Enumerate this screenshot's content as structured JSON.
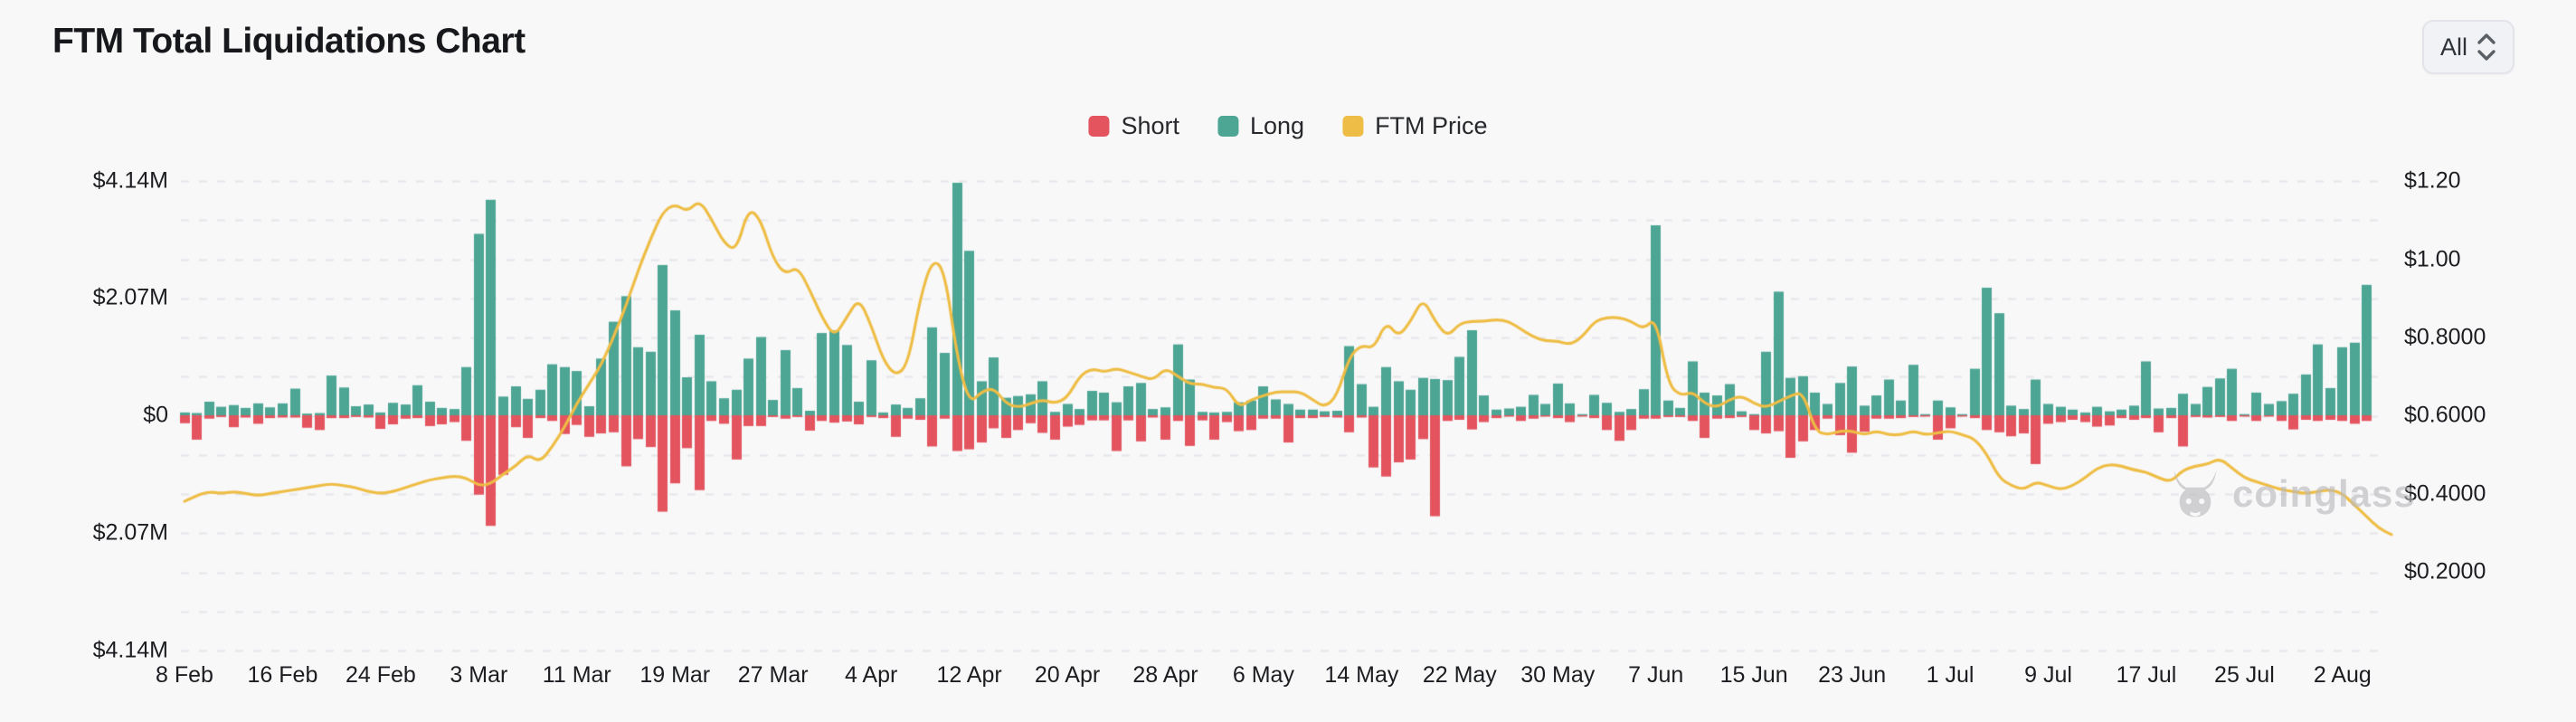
{
  "header": {
    "title": "FTM Total Liquidations Chart",
    "range_selector": {
      "selected": "All"
    }
  },
  "legend": {
    "items": [
      {
        "label": "Short",
        "color": "#e3545f"
      },
      {
        "label": "Long",
        "color": "#4da594"
      },
      {
        "label": "FTM Price",
        "color": "#eebd45"
      }
    ]
  },
  "watermark": {
    "text": "coinglass",
    "icon": "bull-icon"
  },
  "colors": {
    "background": "#f8f8f9",
    "gridline": "#e6e6e9",
    "short_bar": "#e3545f",
    "long_bar": "#4da594",
    "price_line": "#eebd45",
    "axis_text": "#1c1d20"
  },
  "chart_data": {
    "type": "combo",
    "title": "FTM Total Liquidations Chart",
    "grid": "horizontal-dashed",
    "legend_position": "top-center",
    "x_tick_labels": [
      "8 Feb",
      "16 Feb",
      "24 Feb",
      "3 Mar",
      "11 Mar",
      "19 Mar",
      "27 Mar",
      "4 Apr",
      "12 Apr",
      "20 Apr",
      "28 Apr",
      "6 May",
      "14 May",
      "22 May",
      "30 May",
      "7 Jun",
      "15 Jun",
      "23 Jun",
      "1 Jul",
      "9 Jul",
      "17 Jul",
      "25 Jul",
      "2 Aug"
    ],
    "x_tick_interval_days": 8,
    "y_axis_left": {
      "tick_labels": [
        "$4.14M",
        "$2.07M",
        "$0",
        "$2.07M",
        "$4.14M"
      ],
      "range_million_usd": [
        -4.14,
        4.14
      ],
      "note": "bars; negative shown unsigned"
    },
    "y_axis_right": {
      "tick_labels": [
        "$1.20",
        "$1.00",
        "$0.8000",
        "$0.6000",
        "$0.4000",
        "$0.2000"
      ],
      "range_usd": [
        0.0,
        1.2
      ]
    },
    "series": [
      {
        "name": "Long",
        "type": "bar",
        "direction": "up",
        "unit": "million USD",
        "color": "#4da594",
        "values": [
          0.05,
          0.04,
          0.24,
          0.15,
          0.18,
          0.13,
          0.21,
          0.14,
          0.21,
          0.47,
          0.03,
          0.04,
          0.7,
          0.49,
          0.16,
          0.19,
          0.05,
          0.22,
          0.19,
          0.53,
          0.24,
          0.13,
          0.11,
          0.85,
          3.2,
          3.8,
          0.33,
          0.51,
          0.29,
          0.45,
          0.9,
          0.85,
          0.78,
          0.16,
          1.0,
          1.65,
          2.1,
          1.2,
          1.12,
          2.65,
          1.85,
          0.67,
          1.42,
          0.6,
          0.3,
          0.45,
          1.0,
          1.38,
          0.27,
          1.15,
          0.48,
          0.08,
          1.45,
          1.5,
          1.24,
          0.24,
          0.97,
          0.05,
          0.19,
          0.13,
          0.3,
          1.55,
          1.1,
          4.1,
          2.9,
          0.6,
          1.02,
          0.31,
          0.34,
          0.37,
          0.6,
          0.06,
          0.2,
          0.11,
          0.43,
          0.4,
          0.23,
          0.51,
          0.57,
          0.11,
          0.14,
          1.25,
          0.63,
          0.06,
          0.05,
          0.06,
          0.23,
          0.26,
          0.51,
          0.28,
          0.2,
          0.1,
          0.1,
          0.07,
          0.08,
          1.22,
          0.55,
          0.15,
          0.85,
          0.6,
          0.45,
          0.66,
          0.64,
          0.62,
          1.03,
          1.5,
          0.35,
          0.1,
          0.12,
          0.15,
          0.36,
          0.2,
          0.56,
          0.21,
          0.02,
          0.36,
          0.22,
          0.06,
          0.11,
          0.46,
          3.35,
          0.26,
          0.13,
          0.95,
          0.4,
          0.35,
          0.55,
          0.07,
          0.02,
          1.12,
          2.18,
          0.66,
          0.69,
          0.4,
          0.2,
          0.57,
          0.86,
          0.17,
          0.35,
          0.63,
          0.26,
          0.89,
          0.02,
          0.26,
          0.14,
          0.02,
          0.82,
          2.25,
          1.8,
          0.17,
          0.11,
          0.63,
          0.2,
          0.15,
          0.1,
          0.05,
          0.15,
          0.07,
          0.1,
          0.17,
          0.95,
          0.12,
          0.13,
          0.38,
          0.2,
          0.5,
          0.65,
          0.82,
          0.02,
          0.4,
          0.2,
          0.25,
          0.38,
          0.72,
          1.25,
          0.48,
          1.2,
          1.28,
          2.3
        ]
      },
      {
        "name": "Short",
        "type": "bar",
        "direction": "down",
        "unit": "million USD",
        "color": "#e3545f",
        "values": [
          0.14,
          0.43,
          0.06,
          0.03,
          0.21,
          0.04,
          0.15,
          0.05,
          0.04,
          0.04,
          0.22,
          0.26,
          0.05,
          0.05,
          0.03,
          0.04,
          0.24,
          0.16,
          0.06,
          0.05,
          0.19,
          0.16,
          0.12,
          0.45,
          1.4,
          1.95,
          1.05,
          0.21,
          0.4,
          0.05,
          0.1,
          0.33,
          0.17,
          0.38,
          0.32,
          0.3,
          0.9,
          0.42,
          0.56,
          1.7,
          1.2,
          0.58,
          1.32,
          0.1,
          0.15,
          0.78,
          0.19,
          0.19,
          0.03,
          0.06,
          0.03,
          0.27,
          0.1,
          0.13,
          0.11,
          0.16,
          0.03,
          0.05,
          0.38,
          0.06,
          0.08,
          0.55,
          0.06,
          0.63,
          0.6,
          0.48,
          0.23,
          0.4,
          0.26,
          0.14,
          0.31,
          0.43,
          0.2,
          0.17,
          0.09,
          0.09,
          0.63,
          0.09,
          0.46,
          0.04,
          0.43,
          0.1,
          0.54,
          0.09,
          0.43,
          0.12,
          0.28,
          0.26,
          0.06,
          0.06,
          0.48,
          0.05,
          0.05,
          0.03,
          0.04,
          0.3,
          0.04,
          0.92,
          1.08,
          0.83,
          0.78,
          0.42,
          1.78,
          0.1,
          0.08,
          0.25,
          0.12,
          0.05,
          0.02,
          0.1,
          0.06,
          0.02,
          0.05,
          0.12,
          0.02,
          0.05,
          0.26,
          0.45,
          0.26,
          0.06,
          0.06,
          0.03,
          0.03,
          0.1,
          0.4,
          0.06,
          0.05,
          0.03,
          0.26,
          0.32,
          0.28,
          0.75,
          0.46,
          0.26,
          0.06,
          0.35,
          0.66,
          0.29,
          0.06,
          0.06,
          0.05,
          0.03,
          0.01,
          0.43,
          0.23,
          0.02,
          0.05,
          0.26,
          0.3,
          0.37,
          0.32,
          0.86,
          0.15,
          0.12,
          0.08,
          0.12,
          0.2,
          0.18,
          0.05,
          0.08,
          0.05,
          0.3,
          0.05,
          0.55,
          0.03,
          0.04,
          0.03,
          0.1,
          0.02,
          0.1,
          0.02,
          0.1,
          0.25,
          0.08,
          0.1,
          0.08,
          0.1,
          0.15,
          0.1
        ]
      },
      {
        "name": "FTM Price",
        "type": "line",
        "unit": "USD",
        "color": "#eebd45",
        "values": [
          0.38,
          0.395,
          0.405,
          0.4,
          0.405,
          0.4,
          0.395,
          0.4,
          0.405,
          0.41,
          0.415,
          0.42,
          0.425,
          0.42,
          0.415,
          0.405,
          0.4,
          0.405,
          0.415,
          0.425,
          0.435,
          0.44,
          0.445,
          0.44,
          0.42,
          0.425,
          0.45,
          0.47,
          0.5,
          0.48,
          0.52,
          0.57,
          0.63,
          0.68,
          0.73,
          0.8,
          0.88,
          0.97,
          1.05,
          1.12,
          1.14,
          1.12,
          1.15,
          1.1,
          1.04,
          1.02,
          1.13,
          1.1,
          1.0,
          0.96,
          0.98,
          0.92,
          0.85,
          0.8,
          0.85,
          0.9,
          0.83,
          0.74,
          0.7,
          0.73,
          0.9,
          1.0,
          0.97,
          0.75,
          0.63,
          0.66,
          0.67,
          0.63,
          0.62,
          0.63,
          0.64,
          0.63,
          0.645,
          0.7,
          0.72,
          0.71,
          0.72,
          0.71,
          0.7,
          0.69,
          0.72,
          0.7,
          0.68,
          0.68,
          0.67,
          0.67,
          0.62,
          0.64,
          0.65,
          0.66,
          0.66,
          0.66,
          0.64,
          0.62,
          0.65,
          0.75,
          0.78,
          0.77,
          0.84,
          0.8,
          0.84,
          0.9,
          0.84,
          0.8,
          0.835,
          0.84,
          0.84,
          0.845,
          0.84,
          0.82,
          0.8,
          0.79,
          0.79,
          0.78,
          0.8,
          0.84,
          0.85,
          0.85,
          0.84,
          0.82,
          0.85,
          0.68,
          0.65,
          0.66,
          0.63,
          0.62,
          0.64,
          0.65,
          0.63,
          0.62,
          0.635,
          0.65,
          0.66,
          0.56,
          0.55,
          0.56,
          0.56,
          0.55,
          0.56,
          0.55,
          0.55,
          0.56,
          0.55,
          0.555,
          0.56,
          0.55,
          0.54,
          0.5,
          0.44,
          0.42,
          0.41,
          0.43,
          0.42,
          0.41,
          0.42,
          0.44,
          0.465,
          0.475,
          0.47,
          0.46,
          0.455,
          0.44,
          0.43,
          0.46,
          0.47,
          0.475,
          0.49,
          0.465,
          0.44,
          0.43,
          0.42,
          0.41,
          0.405,
          0.4,
          0.405,
          0.41,
          0.4,
          0.37,
          0.34,
          0.31,
          0.295
        ]
      }
    ]
  }
}
